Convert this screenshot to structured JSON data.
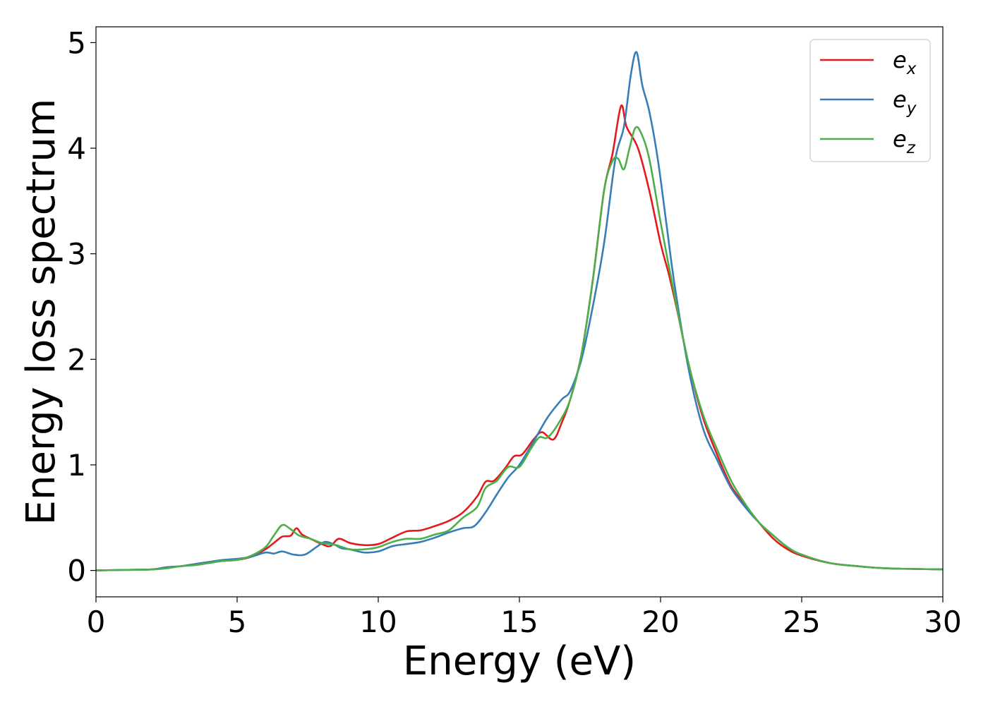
{
  "chart_data": {
    "type": "line",
    "title": "",
    "xlabel": "Energy (eV)",
    "ylabel": "Energy loss spectrum",
    "xlim": [
      0,
      30
    ],
    "ylim": [
      -0.25,
      5.15
    ],
    "xticks": [
      0,
      5,
      10,
      15,
      20,
      25,
      30
    ],
    "yticks": [
      0,
      1,
      2,
      3,
      4,
      5
    ],
    "grid": false,
    "legend": {
      "placement": "top-right"
    },
    "series": [
      {
        "name": "e",
        "subscript": "x",
        "color": "#e41a1c",
        "points": [
          [
            0,
            0
          ],
          [
            1,
            0.005
          ],
          [
            2,
            0.01
          ],
          [
            2.5,
            0.03
          ],
          [
            3,
            0.04
          ],
          [
            3.5,
            0.06
          ],
          [
            4,
            0.08
          ],
          [
            4.5,
            0.09
          ],
          [
            5,
            0.1
          ],
          [
            5.5,
            0.13
          ],
          [
            6,
            0.2
          ],
          [
            6.3,
            0.26
          ],
          [
            6.6,
            0.32
          ],
          [
            6.9,
            0.33
          ],
          [
            7.1,
            0.4
          ],
          [
            7.3,
            0.34
          ],
          [
            7.6,
            0.3
          ],
          [
            8,
            0.25
          ],
          [
            8.3,
            0.23
          ],
          [
            8.6,
            0.3
          ],
          [
            9,
            0.26
          ],
          [
            9.5,
            0.24
          ],
          [
            10,
            0.25
          ],
          [
            10.5,
            0.31
          ],
          [
            11,
            0.37
          ],
          [
            11.5,
            0.38
          ],
          [
            12,
            0.42
          ],
          [
            12.5,
            0.47
          ],
          [
            13,
            0.55
          ],
          [
            13.5,
            0.7
          ],
          [
            13.8,
            0.84
          ],
          [
            14.1,
            0.85
          ],
          [
            14.5,
            0.97
          ],
          [
            14.8,
            1.08
          ],
          [
            15.1,
            1.1
          ],
          [
            15.5,
            1.24
          ],
          [
            15.8,
            1.31
          ],
          [
            16.2,
            1.24
          ],
          [
            16.5,
            1.4
          ],
          [
            16.8,
            1.62
          ],
          [
            17.2,
            2.05
          ],
          [
            17.6,
            2.75
          ],
          [
            18,
            3.6
          ],
          [
            18.3,
            3.95
          ],
          [
            18.6,
            4.4
          ],
          [
            18.8,
            4.2
          ],
          [
            19.2,
            4.0
          ],
          [
            19.6,
            3.6
          ],
          [
            20,
            3.1
          ],
          [
            20.3,
            2.8
          ],
          [
            20.6,
            2.45
          ],
          [
            21,
            1.95
          ],
          [
            21.5,
            1.45
          ],
          [
            22,
            1.1
          ],
          [
            22.5,
            0.8
          ],
          [
            23,
            0.62
          ],
          [
            23.5,
            0.45
          ],
          [
            24,
            0.3
          ],
          [
            24.5,
            0.2
          ],
          [
            25,
            0.14
          ],
          [
            26,
            0.07
          ],
          [
            27,
            0.04
          ],
          [
            28,
            0.02
          ],
          [
            30,
            0.01
          ]
        ]
      },
      {
        "name": "e",
        "subscript": "y",
        "color": "#377eb8",
        "points": [
          [
            0,
            0
          ],
          [
            1,
            0.005
          ],
          [
            2,
            0.01
          ],
          [
            2.5,
            0.03
          ],
          [
            3,
            0.04
          ],
          [
            3.5,
            0.06
          ],
          [
            4,
            0.08
          ],
          [
            4.5,
            0.1
          ],
          [
            5,
            0.11
          ],
          [
            5.5,
            0.13
          ],
          [
            6,
            0.17
          ],
          [
            6.3,
            0.16
          ],
          [
            6.6,
            0.18
          ],
          [
            7,
            0.15
          ],
          [
            7.4,
            0.15
          ],
          [
            7.8,
            0.22
          ],
          [
            8.1,
            0.27
          ],
          [
            8.4,
            0.25
          ],
          [
            8.7,
            0.21
          ],
          [
            9,
            0.2
          ],
          [
            9.5,
            0.17
          ],
          [
            10,
            0.18
          ],
          [
            10.5,
            0.23
          ],
          [
            11,
            0.25
          ],
          [
            11.5,
            0.27
          ],
          [
            12,
            0.31
          ],
          [
            12.5,
            0.36
          ],
          [
            13,
            0.4
          ],
          [
            13.4,
            0.42
          ],
          [
            13.8,
            0.55
          ],
          [
            14.2,
            0.72
          ],
          [
            14.6,
            0.88
          ],
          [
            15,
            1.0
          ],
          [
            15.5,
            1.22
          ],
          [
            16,
            1.45
          ],
          [
            16.5,
            1.62
          ],
          [
            16.8,
            1.7
          ],
          [
            17.2,
            2.0
          ],
          [
            17.6,
            2.5
          ],
          [
            18,
            3.1
          ],
          [
            18.4,
            3.9
          ],
          [
            18.7,
            4.2
          ],
          [
            18.95,
            4.7
          ],
          [
            19.15,
            4.91
          ],
          [
            19.35,
            4.6
          ],
          [
            19.6,
            4.35
          ],
          [
            19.9,
            3.9
          ],
          [
            20.2,
            3.3
          ],
          [
            20.5,
            2.7
          ],
          [
            21,
            1.9
          ],
          [
            21.5,
            1.35
          ],
          [
            22,
            1.05
          ],
          [
            22.5,
            0.78
          ],
          [
            23,
            0.6
          ],
          [
            23.5,
            0.45
          ],
          [
            24,
            0.33
          ],
          [
            24.5,
            0.22
          ],
          [
            25,
            0.15
          ],
          [
            26,
            0.07
          ],
          [
            27,
            0.04
          ],
          [
            28,
            0.02
          ],
          [
            30,
            0.01
          ]
        ]
      },
      {
        "name": "e",
        "subscript": "z",
        "color": "#4daf4a",
        "points": [
          [
            0,
            0
          ],
          [
            1,
            0.005
          ],
          [
            2,
            0.01
          ],
          [
            2.5,
            0.02
          ],
          [
            3,
            0.04
          ],
          [
            3.5,
            0.05
          ],
          [
            4,
            0.07
          ],
          [
            4.5,
            0.09
          ],
          [
            5,
            0.1
          ],
          [
            5.5,
            0.14
          ],
          [
            6,
            0.22
          ],
          [
            6.3,
            0.33
          ],
          [
            6.6,
            0.43
          ],
          [
            6.9,
            0.39
          ],
          [
            7.2,
            0.33
          ],
          [
            7.6,
            0.3
          ],
          [
            8,
            0.26
          ],
          [
            8.5,
            0.24
          ],
          [
            9,
            0.2
          ],
          [
            9.5,
            0.2
          ],
          [
            10,
            0.22
          ],
          [
            10.5,
            0.27
          ],
          [
            11,
            0.3
          ],
          [
            11.5,
            0.3
          ],
          [
            12,
            0.34
          ],
          [
            12.5,
            0.38
          ],
          [
            13,
            0.5
          ],
          [
            13.5,
            0.6
          ],
          [
            13.8,
            0.78
          ],
          [
            14.2,
            0.85
          ],
          [
            14.6,
            0.98
          ],
          [
            15,
            0.98
          ],
          [
            15.4,
            1.15
          ],
          [
            15.7,
            1.26
          ],
          [
            16,
            1.26
          ],
          [
            16.4,
            1.4
          ],
          [
            16.8,
            1.62
          ],
          [
            17.2,
            2.05
          ],
          [
            17.6,
            2.75
          ],
          [
            18,
            3.6
          ],
          [
            18.3,
            3.88
          ],
          [
            18.5,
            3.9
          ],
          [
            18.7,
            3.8
          ],
          [
            18.9,
            4.0
          ],
          [
            19.1,
            4.19
          ],
          [
            19.3,
            4.15
          ],
          [
            19.6,
            3.9
          ],
          [
            20,
            3.3
          ],
          [
            20.5,
            2.6
          ],
          [
            21,
            1.95
          ],
          [
            21.5,
            1.48
          ],
          [
            22,
            1.15
          ],
          [
            22.5,
            0.85
          ],
          [
            23,
            0.63
          ],
          [
            23.5,
            0.45
          ],
          [
            24,
            0.33
          ],
          [
            24.5,
            0.22
          ],
          [
            25,
            0.15
          ],
          [
            26,
            0.07
          ],
          [
            27,
            0.04
          ],
          [
            28,
            0.02
          ],
          [
            30,
            0.01
          ]
        ]
      }
    ]
  }
}
